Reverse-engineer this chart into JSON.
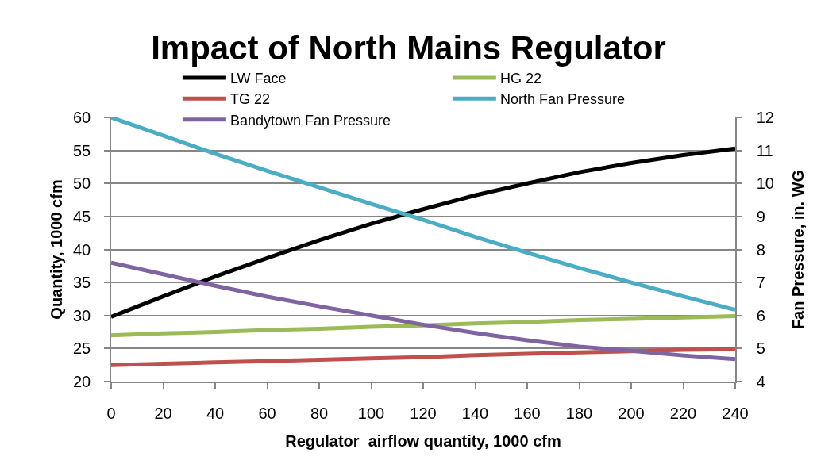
{
  "chart_data": {
    "type": "line",
    "title": "Impact of North Mains Regulator",
    "xlabel": "Regulator  airflow quantity, 1000 cfm",
    "ylabel": "Quantity, 1000 cfm",
    "y2label": "Fan Pressure, in. WG",
    "x": [
      0,
      20,
      40,
      60,
      80,
      100,
      120,
      140,
      160,
      180,
      200,
      220,
      240
    ],
    "series": [
      {
        "name": "LW Face",
        "color": "#000000",
        "values": [
          29.8,
          32.9,
          35.9,
          38.7,
          41.4,
          43.9,
          46.1,
          48.2,
          50.0,
          51.7,
          53.1,
          54.3,
          55.3
        ]
      },
      {
        "name": "HG 22",
        "color": "#9bbb59",
        "values": [
          27.0,
          27.3,
          27.5,
          27.8,
          28.0,
          28.3,
          28.5,
          28.8,
          29.0,
          29.3,
          29.5,
          29.7,
          29.9
        ]
      },
      {
        "name": "TG 22",
        "color": "#c0504d",
        "values": [
          22.5,
          22.7,
          22.9,
          23.1,
          23.3,
          23.5,
          23.7,
          24.0,
          24.2,
          24.4,
          24.6,
          24.8,
          24.9
        ]
      },
      {
        "name": "North Fan Pressure",
        "color": "#4bacc6",
        "axis": "y2",
        "values": [
          12.0,
          11.45,
          10.9,
          10.38,
          9.88,
          9.38,
          8.9,
          8.38,
          7.9,
          7.44,
          7.0,
          6.58,
          6.17
        ]
      },
      {
        "name": "Bandytown Fan Pressure",
        "color": "#8064a2",
        "axis": "y2",
        "values": [
          7.6,
          7.25,
          6.9,
          6.57,
          6.28,
          6.0,
          5.72,
          5.47,
          5.25,
          5.06,
          4.93,
          4.79,
          4.68
        ]
      }
    ],
    "xlim": [
      0,
      240
    ],
    "xticks": [
      0,
      20,
      40,
      60,
      80,
      100,
      120,
      140,
      160,
      180,
      200,
      220,
      240
    ],
    "ylim": [
      20,
      60
    ],
    "yticks": [
      20,
      25,
      30,
      35,
      40,
      45,
      50,
      55,
      60
    ],
    "y2lim": [
      4,
      12
    ],
    "y2ticks": [
      4,
      5,
      6,
      7,
      8,
      9,
      10,
      11,
      12
    ],
    "grid": "y",
    "legend": "top",
    "line_style": "solid"
  }
}
